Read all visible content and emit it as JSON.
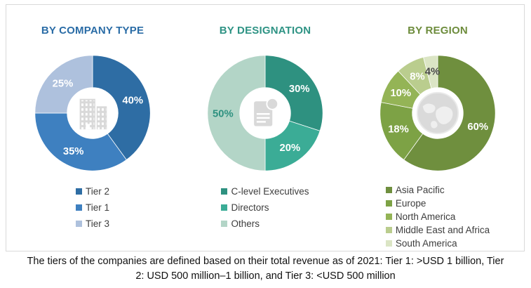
{
  "figure": {
    "caption": "The tiers of the companies are defined based on their total revenue as of 2021: Tier 1: >USD 1 billion, Tier 2: USD 500 million–1 billion, and Tier 3: <USD 500 million"
  },
  "icons": {
    "company_type": "building-icon",
    "designation": "document-icon",
    "region": "globe-icon"
  },
  "chart_data": [
    {
      "type": "pie",
      "subtype": "donut",
      "title": "BY COMPANY TYPE",
      "title_color": "#2a6ca6",
      "center_icon": "building-icon",
      "legend_position": "bottom",
      "segments": [
        {
          "label": "Tier 2",
          "value": 40,
          "color": "#2e6da4",
          "label_color": "#ffffff"
        },
        {
          "label": "Tier 1",
          "value": 35,
          "color": "#3e80c0",
          "label_color": "#ffffff"
        },
        {
          "label": "Tier 3",
          "value": 25,
          "color": "#aec1dd",
          "label_color": "#ffffff"
        }
      ]
    },
    {
      "type": "pie",
      "subtype": "donut",
      "title": "BY DESIGNATION",
      "title_color": "#2e9384",
      "center_icon": "document-icon",
      "legend_position": "bottom",
      "segments": [
        {
          "label": "C-level Executives",
          "value": 30,
          "color": "#2e9180",
          "label_color": "#ffffff"
        },
        {
          "label": "Directors",
          "value": 20,
          "color": "#3bac96",
          "label_color": "#ffffff"
        },
        {
          "label": "Others",
          "value": 50,
          "color": "#b3d5c7",
          "label_color": "#2e9180"
        }
      ]
    },
    {
      "type": "pie",
      "subtype": "donut",
      "title": "BY REGION",
      "title_color": "#6d8c3c",
      "center_icon": "globe-icon",
      "legend_position": "bottom",
      "segments": [
        {
          "label": "Asia Pacific",
          "value": 60,
          "color": "#6f8f3e",
          "label_color": "#ffffff"
        },
        {
          "label": "Europe",
          "value": 18,
          "color": "#7da245",
          "label_color": "#ffffff"
        },
        {
          "label": "North America",
          "value": 10,
          "color": "#94b456",
          "label_color": "#ffffff"
        },
        {
          "label": "Middle East and Africa",
          "value": 8,
          "color": "#bacd8e",
          "label_color": "#ffffff"
        },
        {
          "label": "South America",
          "value": 4,
          "color": "#dbe5c5",
          "label_color": "#4a4a4a"
        }
      ]
    }
  ]
}
